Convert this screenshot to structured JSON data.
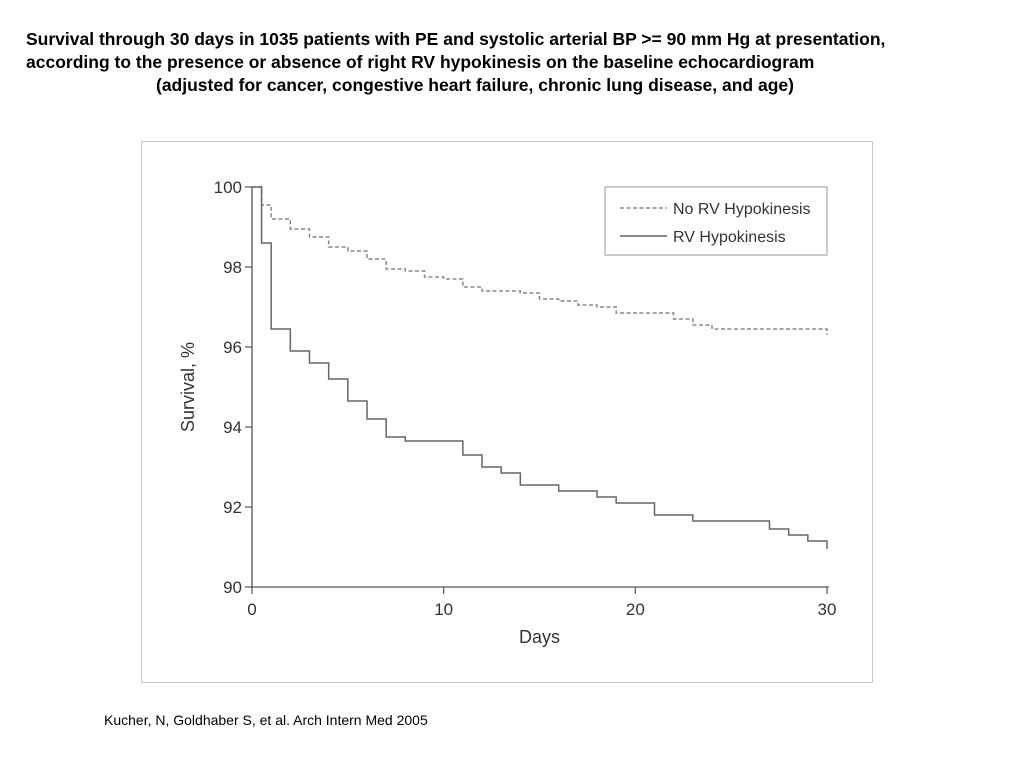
{
  "title": {
    "line1": "Survival through 30 days in 1035 patients with PE and systolic arterial BP >= 90 mm Hg at presentation,",
    "line2": "according to the presence or absence of right RV hypokinesis on the baseline echocardiogram",
    "line3": "(adjusted for cancer, congestive heart failure, chronic lung disease, and age)"
  },
  "citation": "Kucher, N, Goldhaber S, et al. Arch Intern Med 2005",
  "chart_data": {
    "type": "line",
    "step": true,
    "xlabel": "Days",
    "ylabel": "Survival, %",
    "xlim": [
      0,
      30
    ],
    "ylim": [
      90,
      100
    ],
    "xticks": [
      0,
      10,
      20,
      30
    ],
    "yticks": [
      90,
      92,
      94,
      96,
      98,
      100
    ],
    "grid": false,
    "legend_position": "top-right",
    "series": [
      {
        "name": "No RV Hypokinesis",
        "style": "dashed",
        "color": "#888888",
        "x": [
          0,
          0.5,
          1,
          2,
          3,
          4,
          5,
          6,
          7,
          8,
          9,
          10,
          11,
          12,
          13,
          14,
          15,
          16,
          17,
          18,
          19,
          20,
          21,
          22,
          23,
          24,
          25,
          26,
          27,
          28,
          29,
          30
        ],
        "y": [
          100,
          99.55,
          99.2,
          98.95,
          98.75,
          98.5,
          98.4,
          98.2,
          97.95,
          97.9,
          97.75,
          97.7,
          97.5,
          97.4,
          97.4,
          97.35,
          97.2,
          97.15,
          97.05,
          97.0,
          96.85,
          96.85,
          96.85,
          96.7,
          96.55,
          96.45,
          96.45,
          96.45,
          96.45,
          96.45,
          96.45,
          96.3
        ]
      },
      {
        "name": "RV Hypokinesis",
        "style": "solid",
        "color": "#666666",
        "x": [
          0,
          0.5,
          1,
          2,
          3,
          4,
          5,
          6,
          7,
          8,
          11,
          12,
          13,
          14,
          16,
          18,
          19,
          21,
          23,
          27,
          28,
          29,
          30
        ],
        "y": [
          100,
          98.6,
          96.45,
          95.9,
          95.6,
          95.2,
          94.65,
          94.2,
          93.75,
          93.65,
          93.3,
          93.0,
          92.85,
          92.55,
          92.4,
          92.25,
          92.1,
          91.8,
          91.65,
          91.45,
          91.3,
          91.15,
          90.95
        ]
      }
    ]
  }
}
